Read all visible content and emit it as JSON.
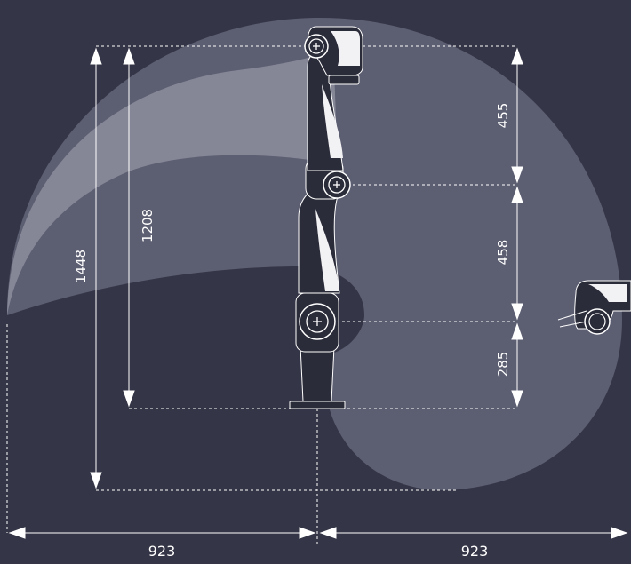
{
  "colors": {
    "background": "#343546",
    "reach_outer": "#5c5e71",
    "reach_spiral": "#8a8c9b",
    "robot_dark": "#2b2c3a",
    "robot_light": "#f2f2f5",
    "lines": "#ffffff"
  },
  "dimensions": {
    "total_height": "1448",
    "reach_height": "1208",
    "segment_upper": "455",
    "segment_middle": "458",
    "segment_base": "285",
    "reach_left": "923",
    "reach_right": "923"
  },
  "icons": {
    "joint_marker": "plus-in-circle",
    "arrow": "arrowhead"
  }
}
